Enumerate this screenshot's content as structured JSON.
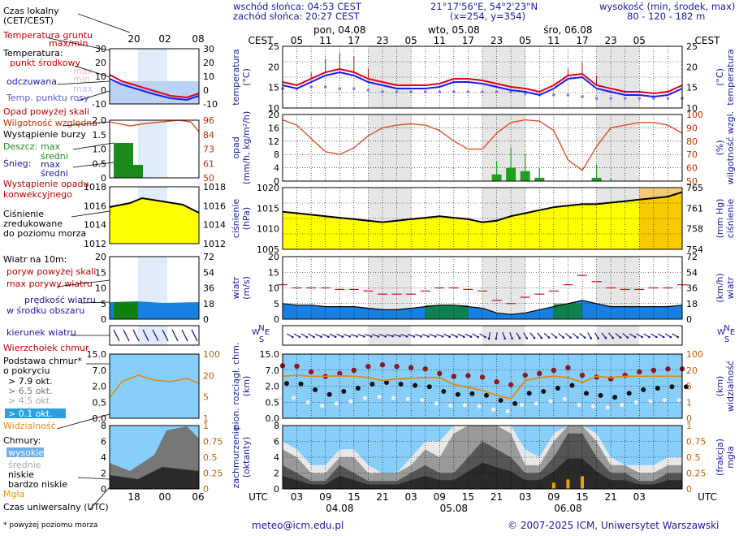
{
  "header": {
    "sunrise": "wschód słońca: 04:53 CEST",
    "sunset": "zachód słońca: 20:27 CEST",
    "coords": "21°17'56\"E, 54°2'23\"N",
    "grid": "(x=254,  y=354)",
    "height_title": "wysokość (min, środek, max)",
    "height_values": "80 - 120 - 182 m"
  },
  "footer": {
    "email": "meteo@icm.edu.pl",
    "copyright": "© 2007-2025 ICM, Uniwersytet Warszawski",
    "note": "* powyżej poziomu morza"
  },
  "legend": {
    "local_time": "Czas lokalny",
    "local_time_sub": "(CET/CEST)",
    "ground_temp": "Temperatura gruntu",
    "ground_temp_sub": "max/min",
    "temp": "Temperatura:",
    "temp_mid": "punkt środkowy",
    "temp_max": "max",
    "temp_min": "min",
    "feels": "odczuwana",
    "feels_max": "max",
    "feels_min": "min",
    "dew": "Temp. punktu rosy",
    "precip_above": "Opad powyżej skali",
    "humidity": "Wilgotność względna",
    "storm": "Wystąpienie burzy",
    "rain": "Deszcz:",
    "rain_max": "max",
    "rain_mid": "średni",
    "snow": "Śnieg:",
    "snow_max": "max",
    "snow_mid": "średni",
    "conv": "Wystąpienie opadu",
    "conv2": "konwekcyjnego",
    "pressure1": "Ciśnienie",
    "pressure2": "zredukowane",
    "pressure3": "do poziomu morza",
    "wind_title": "Wiatr na 10m:",
    "gust_above": "poryw powyżej skali",
    "gust_max": "max porywy wiatru",
    "wind_speed": "prędkość wiatru",
    "wind_area": "w środku obszaru",
    "wind_dir": "kierunek wiatru",
    "cb": "Wierzchołek chmur",
    "cloud_base1": "Podstawa chmur*",
    "cloud_base2": "o pokryciu",
    "okt79": "> 7.9 okt.",
    "okt65": "> 6.5 okt.",
    "okt45": "> 4.5 okt.",
    "okt25": "> 2.5 okt.",
    "okt01": "> 0.1 okt.",
    "visibility": "Widzialność",
    "clouds": "Chmury:",
    "cl_high": "wysokie",
    "cl_mid": "średnie",
    "cl_low": "niskie",
    "cl_vlow": "bardzo niskie",
    "fog": "Mgła",
    "utc_title": "Czas uniwersalny (UTC)"
  },
  "legend_axes": {
    "top_hours": [
      "20",
      "02",
      "08"
    ],
    "bottom_hours": [
      "18",
      "00",
      "06"
    ],
    "temp_left": [
      "30",
      "20",
      "10",
      "0",
      "-10"
    ],
    "temp_right": [
      "30",
      "20",
      "10",
      "0",
      "-10"
    ],
    "precip_left": [
      "2.0",
      "1.5",
      "1.0",
      "0.5",
      "0"
    ],
    "hum_right": [
      "96",
      "84",
      "73",
      "61",
      "50"
    ],
    "press_left": [
      "1018",
      "1016",
      "1014",
      "1012"
    ],
    "press_right": [
      "1018",
      "1016",
      "1014",
      "1012"
    ],
    "wind_left": [
      "20",
      "15",
      "10",
      "5",
      "0"
    ],
    "wind_right": [
      "72",
      "54",
      "36",
      "18",
      "0"
    ],
    "cloud_left": [
      "15.0",
      "7.0",
      "2.0",
      "0.5",
      "0.0"
    ],
    "cloud_right": [
      "100",
      "20",
      "5",
      "1"
    ],
    "cover_left": [
      "8",
      "6",
      "4",
      "2",
      "0"
    ],
    "cover_right": [
      "1",
      "0.75",
      "0.5",
      "0.25",
      "0"
    ]
  },
  "axes": {
    "cest": "CEST",
    "utc": "UTC",
    "top_hours": [
      "05",
      "11",
      "17",
      "23",
      "05",
      "11",
      "17",
      "23",
      "05",
      "11",
      "17",
      "23",
      "05"
    ],
    "days": [
      "pon, 04.08",
      "wto, 05.08",
      "śro, 06.08"
    ],
    "bottom_hours": [
      "03",
      "09",
      "15",
      "21",
      "03",
      "09",
      "15",
      "21",
      "03",
      "09",
      "15",
      "21",
      "03"
    ],
    "bottom_days": [
      "04.08",
      "05.08",
      "06.08"
    ]
  },
  "panels": {
    "temp": {
      "l1": "temperatura",
      "l2": "(°C)",
      "r1": "(°C)",
      "r2": "temperatura",
      "ticks_left": [
        "25",
        "20",
        "15",
        "10"
      ],
      "ticks_right": [
        "25",
        "20",
        "15",
        "10"
      ]
    },
    "precip": {
      "l1": "opad",
      "l2": "(mm/h, kg/m²/h)",
      "r1": "(%)",
      "r2": "wilgotność wzgl.",
      "ticks_left": [
        "20",
        "16",
        "12",
        "8",
        "4",
        "0"
      ],
      "ticks_right": [
        "100",
        "90",
        "80",
        "70",
        "60",
        "50"
      ]
    },
    "pressure": {
      "l1": "ciśnienie",
      "l2": "(hPa)",
      "r1": "(mm Hg)",
      "r2": "ciśnienie",
      "ticks_left": [
        "1020",
        "1015",
        "1010",
        "1005"
      ],
      "ticks_right": [
        "765",
        "761",
        "758",
        "754"
      ]
    },
    "wind": {
      "l1": "wiatr",
      "l2": "(m/s)",
      "r1": "(km/h)",
      "r2": "wiatr",
      "ticks_left": [
        "20",
        "15",
        "10",
        "5",
        "0"
      ],
      "ticks_right": [
        "72",
        "54",
        "36",
        "18",
        "0"
      ]
    },
    "winddir": {
      "n": "N",
      "w": "W",
      "e": "E",
      "s": "S"
    },
    "cloud": {
      "l1": "pion. rozciągł. chm.",
      "l2": "(km)",
      "r1": "(km)",
      "r2": "widzialność",
      "ticks_left": [
        "15.0",
        "7.0",
        "2.0",
        "0.5",
        "0.0"
      ],
      "ticks_right": [
        "100",
        "20",
        "5",
        "1",
        "0"
      ]
    },
    "cover": {
      "l1": "zachmurzenie",
      "l2": "(oktanty)",
      "r1": "(frakcja)",
      "r2": "mgła",
      "ticks_left": [
        "8",
        "6",
        "4",
        "2",
        "0"
      ],
      "ticks_right": [
        "1",
        "0.75",
        "0.5",
        "0.25",
        "0"
      ]
    }
  },
  "chart_data": {
    "type": "line",
    "x_hours_utc": [
      0,
      3,
      6,
      9,
      12,
      15,
      18,
      21,
      24,
      27,
      30,
      33,
      36,
      39,
      42,
      45,
      48,
      51,
      54,
      57,
      60,
      63,
      66,
      69,
      72,
      75,
      78,
      81,
      84
    ],
    "start": "04.08 00 UTC",
    "temperature": [
      16,
      15,
      17,
      19,
      20,
      19,
      17,
      16,
      15,
      15,
      15,
      15.5,
      17,
      17,
      16.5,
      15.5,
      14.5,
      14,
      13,
      15,
      18,
      18.5,
      15,
      14,
      13,
      13,
      12.5,
      13,
      15
    ],
    "temperature_max": [
      17,
      16,
      19,
      23,
      25,
      24,
      20,
      17,
      16,
      16,
      16,
      16.5,
      18,
      18,
      17.5,
      16.5,
      15.5,
      15,
      14,
      16,
      20,
      22,
      18,
      15,
      14,
      14,
      13.5,
      14,
      16
    ],
    "temperature_feels": [
      15,
      14,
      16,
      18,
      19,
      18,
      16,
      15,
      14,
      14,
      14,
      14.5,
      16,
      16,
      15.5,
      14.5,
      13.5,
      13,
      12,
      14,
      17,
      17.5,
      14,
      13,
      12,
      12,
      11.5,
      12,
      14
    ],
    "dew_point": [
      14,
      14,
      14.5,
      14.5,
      14,
      14,
      13.5,
      13,
      13,
      13,
      13,
      13,
      13,
      13,
      13,
      13,
      13,
      12.5,
      12,
      12,
      12,
      11.5,
      11,
      11,
      11,
      11,
      11,
      11,
      11
    ],
    "humidity": [
      96,
      92,
      82,
      72,
      70,
      75,
      84,
      90,
      92,
      93,
      92,
      88,
      80,
      74,
      74,
      86,
      94,
      96,
      95,
      88,
      66,
      58,
      76,
      90,
      92,
      94,
      94,
      92,
      86
    ],
    "precip_mean": [
      0,
      0,
      0,
      0,
      0,
      0,
      0,
      0,
      0,
      0,
      0,
      0,
      0,
      0,
      0,
      2,
      4,
      3,
      1,
      0,
      0,
      0,
      1,
      0,
      0,
      0,
      0,
      0,
      0
    ],
    "precip_max": [
      0.2,
      0,
      0.2,
      0.4,
      0.2,
      0,
      0,
      0,
      0,
      0,
      0,
      0,
      0,
      0,
      0,
      6,
      10,
      8,
      4,
      0,
      0,
      0,
      5,
      1,
      0,
      0,
      0,
      0,
      0
    ],
    "pressure": [
      1014.5,
      1014,
      1013.5,
      1013,
      1012.5,
      1012,
      1011.5,
      1011,
      1011.5,
      1012,
      1012.5,
      1013,
      1012.5,
      1012,
      1011,
      1011.5,
      1013,
      1014,
      1015,
      1016,
      1016.5,
      1017,
      1017,
      1017.5,
      1018,
      1018.5,
      1019,
      1019.5,
      1021
    ],
    "wind_speed": [
      5,
      4.5,
      4.5,
      4,
      4,
      4,
      3.5,
      3,
      3,
      3.5,
      4,
      4.5,
      4.5,
      4,
      3.5,
      2,
      1.5,
      2,
      3,
      4,
      5,
      6,
      5,
      4,
      4,
      4,
      4,
      4,
      4.5
    ],
    "wind_gust": [
      11,
      10,
      10,
      10,
      9.5,
      9.5,
      9,
      8,
      8,
      8,
      9,
      10,
      10,
      9.5,
      9,
      6,
      5,
      7,
      8,
      9,
      11,
      14,
      12,
      10,
      9.5,
      9.5,
      10,
      10,
      11
    ],
    "wind_dir_deg": [
      300,
      300,
      300,
      295,
      295,
      290,
      290,
      290,
      285,
      290,
      290,
      290,
      295,
      295,
      300,
      10,
      340,
      330,
      320,
      310,
      310,
      310,
      330,
      320,
      310,
      300,
      300,
      300,
      300
    ],
    "cloud_base_km": [
      6.8,
      6.6,
      4.5,
      3.2,
      4.0,
      5.0,
      6.5,
      7.2,
      6.5,
      6.0,
      5.5,
      4.0,
      3.2,
      3.4,
      3.0,
      2.0,
      1.5,
      3.5,
      4.0,
      5.0,
      6.0,
      3.5,
      3.0,
      2.6,
      3.5,
      4.5,
      5.0,
      5.5,
      5.5
    ],
    "visibility_km": [
      20,
      22,
      20,
      20,
      21,
      20,
      18,
      14,
      16,
      17,
      18,
      18,
      10,
      8,
      6,
      4,
      3,
      14,
      18,
      20,
      18,
      12,
      20,
      18,
      20,
      20,
      20,
      20,
      20
    ],
    "cover_low": [
      3,
      2,
      1,
      1,
      3,
      2,
      1,
      1,
      1,
      2,
      3,
      2,
      2,
      4,
      6,
      5,
      4,
      2,
      2,
      4,
      7,
      7,
      4,
      2,
      2,
      1,
      1,
      2,
      2
    ],
    "cover_mid": [
      5,
      4,
      2,
      2,
      4,
      4,
      2,
      2,
      2,
      3,
      5,
      4,
      7,
      8,
      8,
      8,
      7,
      3,
      3,
      6,
      8,
      8,
      6,
      3,
      3,
      2,
      2,
      3,
      3
    ],
    "cover_high": [
      6,
      5,
      3,
      3,
      5,
      5,
      3,
      2,
      2,
      4,
      6,
      6,
      8,
      8,
      8,
      8,
      8,
      5,
      4,
      7,
      8,
      8,
      7,
      4,
      3,
      3,
      3,
      4,
      4
    ],
    "fog": [
      0,
      0,
      0,
      0,
      0,
      0,
      0,
      0,
      0,
      0,
      0,
      0,
      0,
      0,
      0,
      0,
      0,
      0,
      0,
      0.1,
      0.15,
      0.2,
      0,
      0,
      0,
      0,
      0,
      0,
      0
    ],
    "xlabel": "UTC",
    "ylabel": "temperatura (°C)"
  },
  "colors": {
    "temp": "#e0001a",
    "feels": "#1a1aff",
    "dew": "#7a7aee",
    "humidity": "#e0502a",
    "precip": "#1fa01f",
    "pressure_fill": "#ffff00",
    "wind_fill": "#1880e0",
    "gust": "#d01010",
    "cloud_bg": "#87cefa",
    "dark": "#2a2a2a",
    "axis_label": "#1a1aa0",
    "right_label": "#c06000"
  }
}
